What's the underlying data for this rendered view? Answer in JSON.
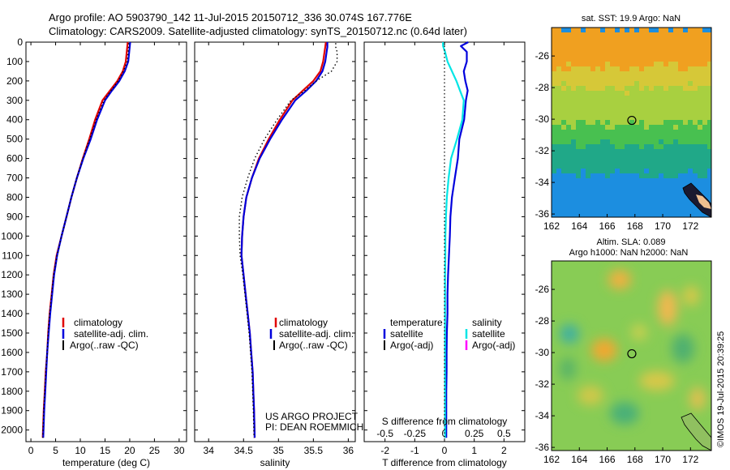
{
  "header": {
    "line1": "Argo profile: AO 5903790_142 11-Jul-2015 20150712_336 30.074S 167.776E",
    "line2": "Climatology: CARS2009. Satellite-adjusted climatology: synTS_20150712.nc (0.64d later)"
  },
  "credits": {
    "project": "US ARGO PROJECT",
    "pi": "PI: DEAN ROEMMICH",
    "copyright": "©IMOS 19-Jul-2015 20:39:25"
  },
  "colors": {
    "climatology": "#e00000",
    "satellite": "#0000dd",
    "argo": "#000000",
    "sal_satellite": "#00e5e5",
    "sal_argo": "#ff00ff"
  },
  "chart_data": [
    {
      "id": "temperature",
      "type": "line",
      "xlabel": "temperature (deg C)",
      "ylabel": "",
      "xlim": [
        -1,
        31.5
      ],
      "ylim": [
        2060,
        0
      ],
      "xticks": [
        0,
        5,
        10,
        15,
        20,
        25,
        30
      ],
      "yticks": [
        0,
        100,
        200,
        300,
        400,
        500,
        600,
        700,
        800,
        900,
        1000,
        1100,
        1200,
        1300,
        1400,
        1500,
        1600,
        1700,
        1800,
        1900,
        2000
      ],
      "legend": [
        "climatology",
        "satellite-adj. clim.",
        "Argo(..raw -QC)"
      ],
      "legend_position": "lower-center",
      "series": [
        {
          "name": "climatology",
          "color": "#e00000",
          "x": [
            19.6,
            19.5,
            19.4,
            19.2,
            18.6,
            17.5,
            16.0,
            14.5,
            13.0,
            11.8,
            10.5,
            9.3,
            8.2,
            7.2,
            6.2,
            5.2,
            4.6,
            4.2,
            3.8,
            3.5,
            3.3,
            3.0,
            2.8,
            2.6,
            2.4
          ],
          "y": [
            0,
            25,
            50,
            100,
            150,
            200,
            250,
            300,
            400,
            500,
            600,
            700,
            800,
            900,
            1000,
            1100,
            1200,
            1300,
            1400,
            1500,
            1600,
            1700,
            1800,
            1900,
            2040
          ]
        },
        {
          "name": "satellite-adj. clim.",
          "color": "#0000dd",
          "x": [
            20.1,
            20.0,
            19.9,
            19.7,
            19.0,
            17.9,
            16.4,
            15.0,
            13.4,
            12.1,
            10.6,
            9.3,
            8.2,
            7.2,
            6.2,
            5.3,
            4.7,
            4.3,
            3.9,
            3.6,
            3.3,
            3.1,
            2.9,
            2.7,
            2.5
          ],
          "y": [
            0,
            25,
            50,
            100,
            150,
            200,
            250,
            300,
            400,
            500,
            600,
            700,
            800,
            900,
            1000,
            1100,
            1200,
            1300,
            1400,
            1500,
            1600,
            1700,
            1800,
            1900,
            2040
          ]
        },
        {
          "name": "Argo(..raw -QC)",
          "color": "#000000",
          "x": [
            19.8,
            19.8,
            19.7,
            19.5,
            18.7,
            17.7,
            16.2,
            14.8,
            13.2,
            11.9,
            10.5,
            9.3,
            8.2,
            7.2,
            6.2,
            5.3,
            4.6,
            4.2,
            3.8,
            3.5,
            3.3,
            3.0,
            2.8,
            2.6,
            2.4
          ],
          "y": [
            5,
            25,
            50,
            100,
            150,
            200,
            250,
            300,
            400,
            500,
            600,
            700,
            800,
            900,
            1000,
            1100,
            1200,
            1300,
            1400,
            1500,
            1600,
            1700,
            1800,
            1900,
            2040
          ]
        }
      ]
    },
    {
      "id": "salinity",
      "type": "line",
      "xlabel": "salinity",
      "ylabel": "",
      "xlim": [
        33.8,
        36.1
      ],
      "ylim": [
        2060,
        0
      ],
      "xticks": [
        34,
        34.5,
        35,
        35.5,
        36
      ],
      "xtick_labels": [
        "34",
        "34.5",
        "35",
        "35.5",
        "36"
      ],
      "legend": [
        "climatology",
        "satellite-adj. clim.",
        "Argo(..raw -QC)"
      ],
      "legend_position": "lower-center",
      "series": [
        {
          "name": "climatology",
          "color": "#e00000",
          "x": [
            35.68,
            35.67,
            35.66,
            35.64,
            35.6,
            35.5,
            35.35,
            35.2,
            35.02,
            34.86,
            34.72,
            34.62,
            34.54,
            34.5,
            34.48,
            34.47,
            34.5,
            34.53,
            34.56,
            34.59,
            34.61,
            34.63,
            34.64,
            34.65,
            34.66
          ],
          "y": [
            0,
            25,
            50,
            100,
            150,
            200,
            250,
            300,
            400,
            500,
            600,
            700,
            800,
            900,
            1000,
            1100,
            1200,
            1300,
            1400,
            1500,
            1600,
            1700,
            1800,
            1900,
            2040
          ]
        },
        {
          "name": "satellite-adj. clim.",
          "color": "#0000dd",
          "x": [
            35.7,
            35.7,
            35.69,
            35.67,
            35.63,
            35.54,
            35.4,
            35.24,
            35.05,
            34.88,
            34.73,
            34.62,
            34.54,
            34.5,
            34.48,
            34.47,
            34.5,
            34.53,
            34.56,
            34.59,
            34.61,
            34.63,
            34.64,
            34.65,
            34.66
          ],
          "y": [
            0,
            25,
            50,
            100,
            150,
            200,
            250,
            300,
            400,
            500,
            600,
            700,
            800,
            900,
            1000,
            1100,
            1200,
            1300,
            1400,
            1500,
            1600,
            1700,
            1800,
            1900,
            2040
          ]
        },
        {
          "name": "Argo(..raw -QC)",
          "color": "#000000",
          "x": [
            35.82,
            35.82,
            35.84,
            35.84,
            35.76,
            35.54,
            35.38,
            35.18,
            34.98,
            34.8,
            34.66,
            34.56,
            34.48,
            34.44,
            34.44,
            34.45,
            34.49,
            34.52,
            34.55,
            34.58,
            34.6,
            34.62,
            34.63,
            34.64,
            34.65
          ],
          "y": [
            5,
            25,
            50,
            100,
            150,
            200,
            250,
            300,
            400,
            500,
            600,
            700,
            800,
            900,
            1000,
            1100,
            1200,
            1300,
            1400,
            1500,
            1600,
            1700,
            1800,
            1900,
            2040
          ]
        }
      ]
    },
    {
      "id": "difference",
      "type": "line",
      "xlabel": "T difference from climatology",
      "xlabel_top": "S difference from climatology",
      "xlim": [
        -2.7,
        2.7
      ],
      "ylim": [
        2060,
        0
      ],
      "xticks": [
        -2,
        -1,
        0,
        1,
        2
      ],
      "xticks_top": [
        -0.5,
        -0.25,
        0,
        0.25,
        0.5
      ],
      "legend_temperature": {
        "title": "temperature",
        "items": [
          "satellite",
          "Argo(-adj)"
        ]
      },
      "legend_salinity": {
        "title": "salinity",
        "items": [
          "satellite",
          "Argo(-adj)"
        ]
      },
      "series": [
        {
          "name": "temperature satellite",
          "color": "#0000dd",
          "x": [
            0.8,
            0.55,
            0.75,
            0.75,
            0.65,
            0.7,
            0.78,
            0.72,
            0.66,
            0.5,
            0.45,
            0.35,
            0.25,
            0.2,
            0.18,
            0.15,
            0.12,
            0.1,
            0.1,
            0.08,
            0.07,
            0.07,
            0.06,
            0.06,
            0.06
          ],
          "y": [
            0,
            20,
            50,
            100,
            150,
            200,
            250,
            300,
            400,
            500,
            600,
            700,
            800,
            900,
            1000,
            1100,
            1200,
            1300,
            1400,
            1500,
            1600,
            1700,
            1800,
            1900,
            2040
          ]
        },
        {
          "name": "salinity satellite",
          "color": "#00e5e5",
          "x": [
            -0.05,
            -0.05,
            0.02,
            0.1,
            0.25,
            0.4,
            0.52,
            0.65,
            0.6,
            0.42,
            0.22,
            0.14,
            0.08,
            0.05,
            0.03,
            0.03,
            0.02,
            0.02,
            0.02,
            0.02,
            0.02,
            0.02,
            0.02,
            0.02,
            0.02
          ],
          "y": [
            0,
            20,
            50,
            100,
            150,
            200,
            250,
            300,
            400,
            500,
            600,
            700,
            800,
            900,
            1000,
            1100,
            1200,
            1300,
            1400,
            1500,
            1600,
            1700,
            1800,
            1900,
            2040
          ]
        },
        {
          "name": "reference",
          "color": "#000000",
          "x": [
            0,
            0,
            0,
            0,
            0
          ],
          "y": [
            0,
            500,
            1000,
            1500,
            2040
          ]
        }
      ]
    }
  ],
  "maps": {
    "sst": {
      "title": "sat. SST: 19.9  Argo: NaN",
      "xlim": [
        162,
        173.5
      ],
      "ylim": [
        -36.2,
        -24.2
      ],
      "xticks": [
        162,
        164,
        166,
        168,
        170,
        172
      ],
      "yticks": [
        -26,
        -28,
        -30,
        -32,
        -34,
        -36
      ],
      "marker": {
        "lon": 167.776,
        "lat": -30.074
      },
      "bands": [
        {
          "from": -24.2,
          "to": -26.7,
          "color": "#f0a020"
        },
        {
          "from": -26.7,
          "to": -28.0,
          "color": "#d6c838"
        },
        {
          "from": -28.0,
          "to": -30.3,
          "color": "#a8d040"
        },
        {
          "from": -30.3,
          "to": -31.6,
          "color": "#48c050"
        },
        {
          "from": -31.6,
          "to": -33.5,
          "color": "#20a888"
        },
        {
          "from": -33.5,
          "to": -36.2,
          "color": "#1c8ee0"
        }
      ]
    },
    "sla": {
      "title_line1": "Altim. SLA: 0.089",
      "title_line2": "Argo h1000: NaN h2000: NaN",
      "xlim": [
        162,
        173.5
      ],
      "ylim": [
        -36.2,
        -24.2
      ],
      "xticks": [
        162,
        164,
        166,
        168,
        170,
        172
      ],
      "yticks": [
        -26,
        -28,
        -30,
        -32,
        -34,
        -36
      ],
      "marker": {
        "lon": 167.776,
        "lat": -30.074
      },
      "base_color": "#88cc55"
    }
  }
}
